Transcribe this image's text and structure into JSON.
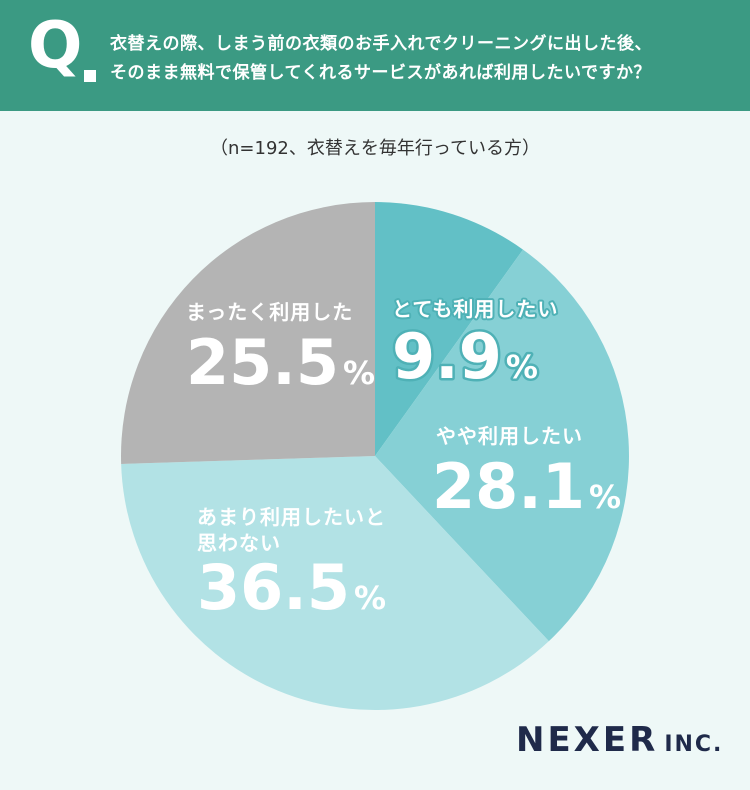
{
  "header": {
    "q_mark": "Q",
    "question_line1": "衣替えの際、しまう前の衣類のお手入れでクリーニングに出した後、",
    "question_line2": "そのまま無料で保管してくれるサービスがあれば利用したいですか？"
  },
  "note": "（n=192、衣替えを毎年行っている方）",
  "chart_data": {
    "type": "pie",
    "slices": [
      {
        "label_lines": [
          "とても利用したい"
        ],
        "value": 9.9,
        "display": "9.9",
        "unit": "%",
        "color": "#62c0c6"
      },
      {
        "label_lines": [
          "やや利用したい"
        ],
        "value": 28.1,
        "display": "28.1",
        "unit": "%",
        "color": "#86d0d5"
      },
      {
        "label_lines": [
          "あまり利用したいと",
          "思わない"
        ],
        "value": 36.5,
        "display": "36.5",
        "unit": "%",
        "color": "#b2e2e5"
      },
      {
        "label_lines": [
          "まったく利用した"
        ],
        "value": 25.5,
        "display": "25.5",
        "unit": "%",
        "color": "#b4b4b4"
      }
    ]
  },
  "brand": {
    "name": "NEXER",
    "suffix": "INC."
  }
}
